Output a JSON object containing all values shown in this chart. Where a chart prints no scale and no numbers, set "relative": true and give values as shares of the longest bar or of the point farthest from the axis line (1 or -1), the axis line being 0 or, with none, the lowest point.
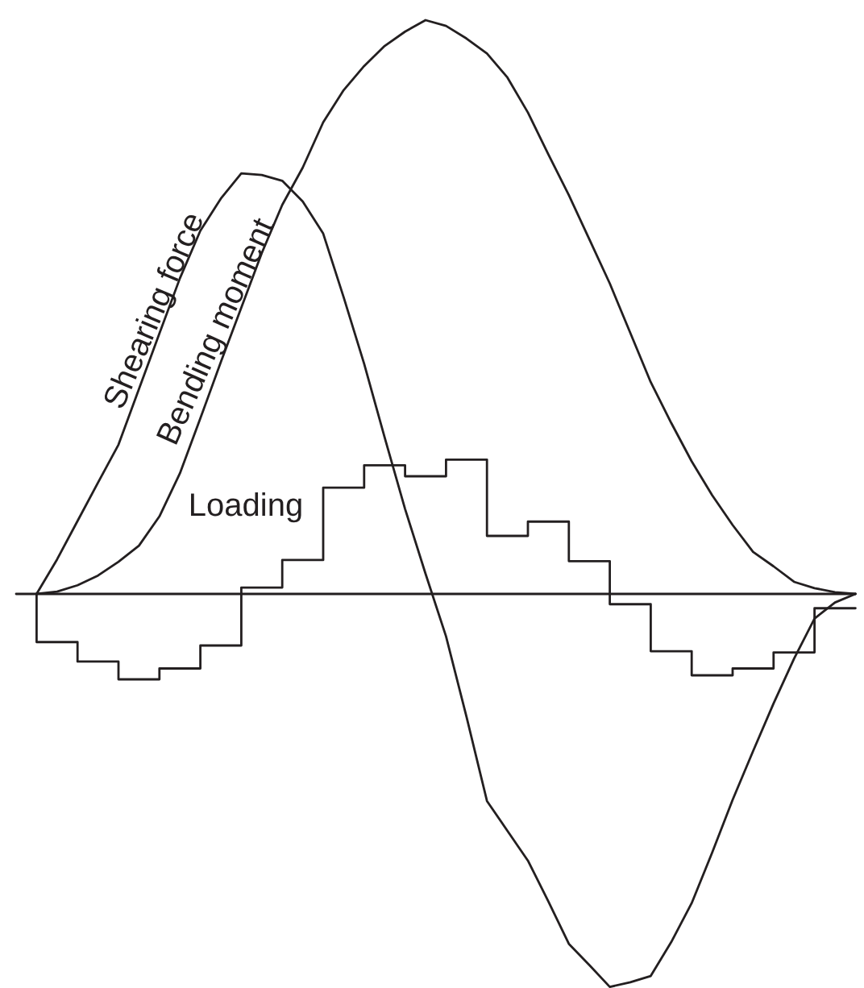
{
  "chart_data": {
    "type": "line",
    "relative": true,
    "marker": "none",
    "categories": [
      null,
      null,
      null,
      null,
      null,
      null,
      null,
      null,
      null,
      null,
      null,
      null,
      null,
      null,
      null,
      null,
      null,
      null,
      null,
      null,
      null,
      null,
      null,
      null,
      null,
      null,
      null,
      null,
      null,
      null,
      null,
      null,
      null,
      null,
      null,
      null,
      null,
      null,
      null,
      null,
      null
    ],
    "series": [
      {
        "name": "Loading",
        "type": "step",
        "color": "#231f20",
        "values": [
          0,
          -0.084,
          -0.084,
          -0.118,
          -0.118,
          -0.149,
          -0.149,
          -0.13,
          -0.13,
          -0.09,
          -0.09,
          0.011,
          0.011,
          0.059,
          0.059,
          0.185,
          0.185,
          0.224,
          0.224,
          0.205,
          0.205,
          0.234,
          0.234,
          0.101,
          0.101,
          0.126,
          0.126,
          0.057,
          0.057,
          -0.018,
          -0.018,
          -0.1,
          -0.1,
          -0.142,
          -0.142,
          -0.13,
          -0.13,
          -0.102,
          -0.102,
          -0.025,
          -0.025
        ]
      },
      {
        "name": "Shearing force",
        "color": "#231f20",
        "values": [
          0,
          0.06,
          0.127,
          0.194,
          0.26,
          0.357,
          0.454,
          0.55,
          0.633,
          0.689,
          0.733,
          0.73,
          0.72,
          0.684,
          0.628,
          0.517,
          0.401,
          0.273,
          0.148,
          0.035,
          -0.074,
          -0.214,
          -0.361,
          -0.413,
          -0.465,
          -0.536,
          -0.61,
          -0.647,
          -0.685,
          -0.677,
          -0.666,
          -0.607,
          -0.539,
          -0.451,
          -0.359,
          -0.274,
          -0.191,
          -0.113,
          -0.043,
          -0.015,
          0
        ]
      },
      {
        "name": "Bending moment",
        "color": "#231f20",
        "values": [
          0,
          0.004,
          0.015,
          0.032,
          0.056,
          0.084,
          0.135,
          0.21,
          0.306,
          0.404,
          0.499,
          0.594,
          0.678,
          0.743,
          0.822,
          0.878,
          0.92,
          0.955,
          0.98,
          1,
          0.99,
          0.968,
          0.942,
          0.9,
          0.839,
          0.766,
          0.695,
          0.618,
          0.541,
          0.455,
          0.369,
          0.298,
          0.231,
          0.172,
          0.12,
          0.073,
          0.048,
          0.021,
          0.01,
          0.003,
          0
        ]
      }
    ]
  }
}
